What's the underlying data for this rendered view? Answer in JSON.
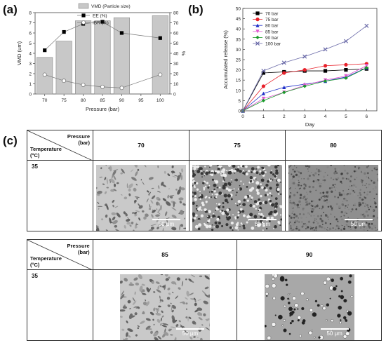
{
  "panels": {
    "a": "(a)",
    "b": "(b)",
    "c": "(c)"
  },
  "chart_data": [
    {
      "type": "bar",
      "categories": [
        "70",
        "75",
        "80",
        "85",
        "90",
        "95",
        "100"
      ],
      "xlabel": "Pressure (bar)",
      "ylabel": "VMD (um)",
      "y2label": "%",
      "ylim": [
        0,
        8
      ],
      "y2lim": [
        0,
        80
      ],
      "yticks": [
        "0",
        "1",
        "2",
        "3",
        "4",
        "5",
        "6",
        "7",
        "8"
      ],
      "y2ticks": [
        "0",
        "10",
        "20",
        "30",
        "40",
        "50",
        "60",
        "70",
        "80"
      ],
      "series": [
        {
          "name": "VMD (Particle size)",
          "kind": "bar",
          "axis": "left",
          "color": "#c8c8c8",
          "values": [
            3.6,
            5.2,
            7.2,
            7.2,
            7.5,
            null,
            7.7
          ]
        },
        {
          "name": "EE (%)",
          "kind": "line",
          "axis": "right",
          "marker": "filled-square",
          "values": [
            43,
            61,
            69,
            71,
            60,
            null,
            55
          ]
        },
        {
          "name": "IBR (%)",
          "kind": "line",
          "axis": "right",
          "marker": "open-circle",
          "values": [
            19,
            13,
            9,
            7,
            6,
            null,
            19
          ]
        }
      ],
      "legend": "top"
    },
    {
      "type": "line",
      "xlabel": "Day",
      "ylabel": "Accumulated release (%)",
      "xlim": [
        0,
        6.5
      ],
      "ylim": [
        0,
        50
      ],
      "xticks": [
        "0",
        "1",
        "2",
        "3",
        "4",
        "5",
        "6"
      ],
      "yticks": [
        "0",
        "5",
        "10",
        "15",
        "20",
        "25",
        "30",
        "35",
        "40",
        "45",
        "50"
      ],
      "x": [
        0,
        1,
        2,
        3,
        4,
        5,
        6
      ],
      "series": [
        {
          "name": "70 bar",
          "color": "#000000",
          "marker": "square",
          "values": [
            0,
            18.5,
            19,
            19.5,
            19.5,
            20,
            20.5
          ]
        },
        {
          "name": "75 bar",
          "color": "#e8202a",
          "marker": "circle",
          "values": [
            0,
            12,
            18.5,
            20,
            22,
            22.5,
            23
          ]
        },
        {
          "name": "80 bar",
          "color": "#1f2fc8",
          "marker": "triangle",
          "values": [
            0,
            8.5,
            11.5,
            13,
            14.5,
            16.5,
            21
          ]
        },
        {
          "name": "85 bar",
          "color": "#e05ad0",
          "marker": "triangle-down",
          "values": [
            0,
            6,
            9,
            12.5,
            15,
            17,
            22
          ]
        },
        {
          "name": "90 bar",
          "color": "#1a9a2a",
          "marker": "diamond",
          "values": [
            0,
            5,
            9,
            12,
            14.5,
            16,
            21
          ]
        },
        {
          "name": "100 bar",
          "color": "#6a6aa8",
          "marker": "x",
          "values": [
            0,
            19.5,
            23.5,
            26.5,
            30,
            34,
            41.5
          ]
        }
      ],
      "legend": "top-left"
    }
  ],
  "table1": {
    "corner_pressure": "Pressure\n(bar)",
    "corner_temperature": "Temperature\n(°C)",
    "temp": "35",
    "cols": [
      {
        "header": "70",
        "scale": "50 μm"
      },
      {
        "header": "75",
        "scale": "50 μm"
      },
      {
        "header": "80",
        "scale": "50 μm"
      }
    ]
  },
  "table2": {
    "corner_pressure": "Pressure\n(bar)",
    "corner_temperature": "Temperature\n(°C)",
    "temp": "35",
    "cols": [
      {
        "header": "85",
        "scale": "50 μm"
      },
      {
        "header": "90",
        "scale": "50 μm"
      }
    ]
  }
}
